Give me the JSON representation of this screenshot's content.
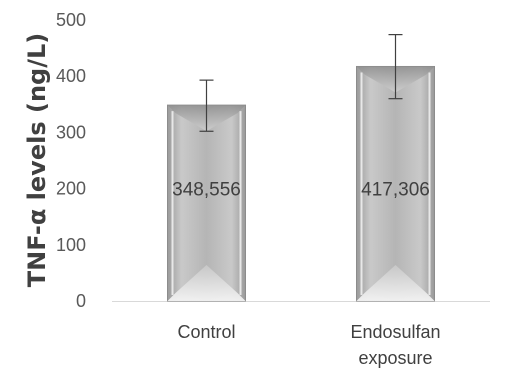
{
  "chart_data": {
    "type": "bar",
    "title": "",
    "xlabel": "",
    "ylabel": "TNF-α levels (ng/L)",
    "ylim": [
      0,
      500
    ],
    "yticks": [
      0,
      100,
      200,
      300,
      400,
      500
    ],
    "categories": [
      "Control",
      "Endosulfan exposure"
    ],
    "category_lines": [
      [
        "Control"
      ],
      [
        "Endosulfan",
        "exposure"
      ]
    ],
    "values": [
      348.556,
      417.306
    ],
    "data_labels": [
      "348,556",
      "417,306"
    ],
    "error_bars": [
      {
        "low": 302,
        "high": 393
      },
      {
        "low": 360,
        "high": 474
      }
    ],
    "grid": false,
    "legend": "none",
    "bar_color": "#b3b3b3"
  }
}
